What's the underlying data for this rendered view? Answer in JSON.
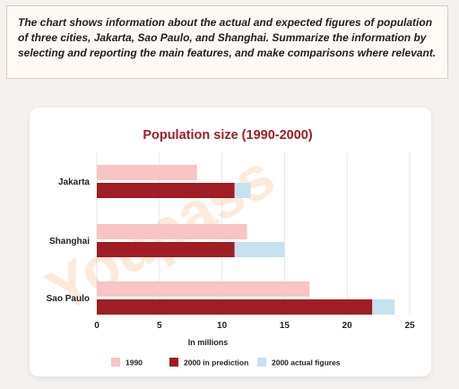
{
  "prompt_text": "The chart shows information about the actual and expected figures of population of three cities, Jakarta, Sao Paulo, and Shanghai. Summarize the information by selecting and reporting the main features, and make comparisons where relevant.",
  "colors": {
    "c1990": "#f8c4c4",
    "c2000p": "#a11d25",
    "c2000a": "#c6e2ee",
    "title": "#a11d25",
    "grid": "#e6e6e6",
    "watermark": "#f3a35a"
  },
  "chart_data": {
    "type": "bar",
    "orientation": "horizontal",
    "title": "Population size (1990-2000)",
    "xlabel": "In millions",
    "ylabel": "",
    "xlim": [
      0,
      25
    ],
    "xticks": [
      0,
      5,
      10,
      15,
      20,
      25
    ],
    "grid": true,
    "legend_position": "bottom",
    "categories": [
      "Jakarta",
      "Shanghai",
      "Sao Paulo"
    ],
    "series": [
      {
        "name": "1990",
        "values": [
          8,
          12,
          17
        ]
      },
      {
        "name": "2000 in prediction",
        "values": [
          11,
          11,
          22
        ]
      },
      {
        "name": "2000 actual figures",
        "values": [
          12.3,
          15,
          23.8
        ]
      }
    ]
  }
}
